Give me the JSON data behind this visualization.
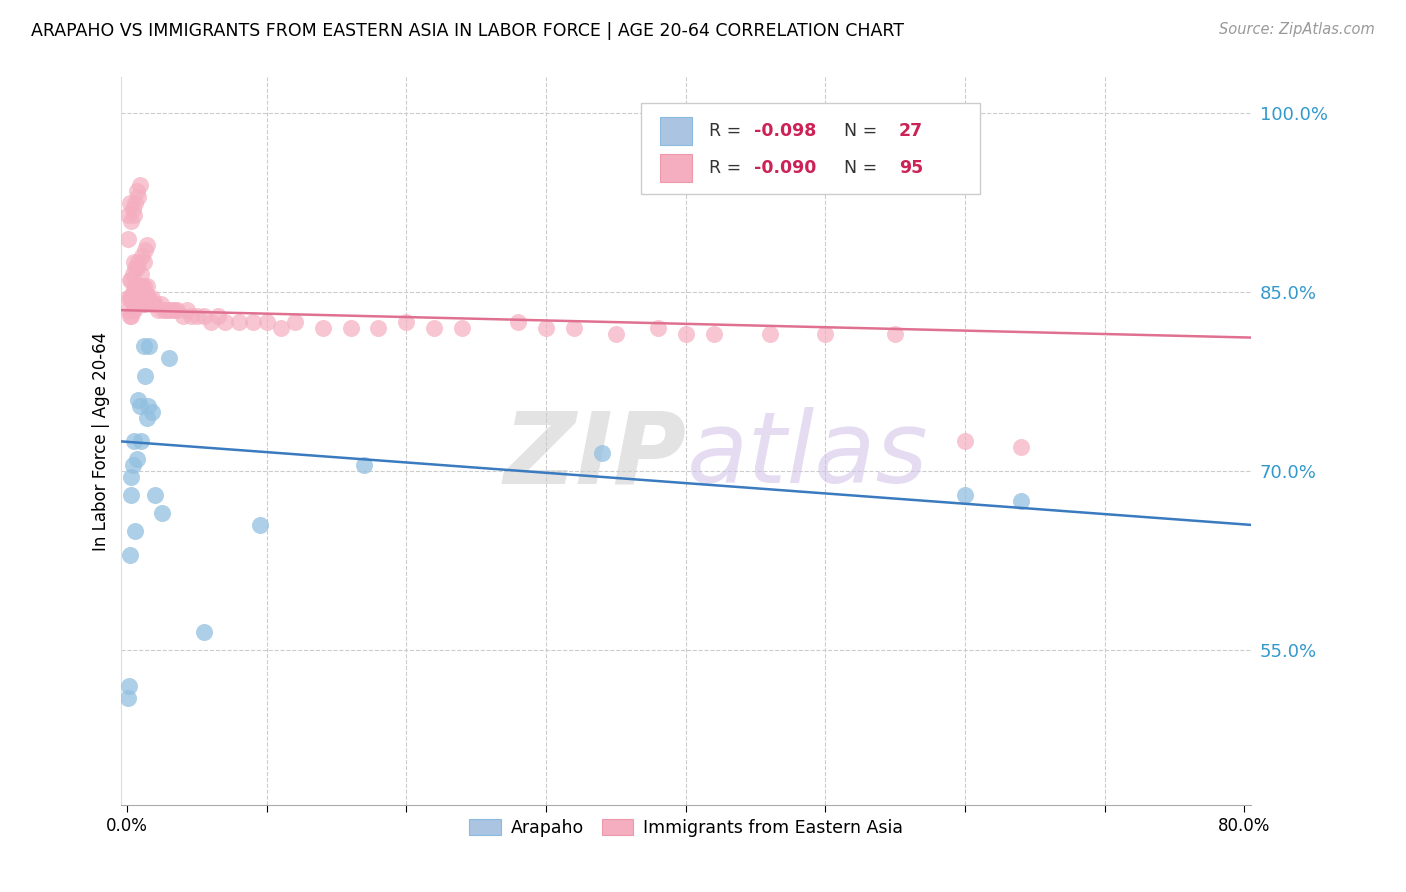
{
  "title": "ARAPAHO VS IMMIGRANTS FROM EASTERN ASIA IN LABOR FORCE | AGE 20-64 CORRELATION CHART",
  "source": "Source: ZipAtlas.com",
  "ylabel": "In Labor Force | Age 20-64",
  "ytick_vals": [
    55.0,
    70.0,
    85.0,
    100.0
  ],
  "xmin": -0.004,
  "xmax": 0.805,
  "ymin": 42.0,
  "ymax": 103.0,
  "watermark": "ZIPatlas",
  "legend_color1": "#aac4e2",
  "legend_color2": "#f4aec0",
  "arapaho_color": "#92bfdf",
  "eastern_asia_color": "#f4aec0",
  "trendline_blue": "#3a7abf",
  "trendline_pink": "#e07090",
  "blue_trend_x0": -0.004,
  "blue_trend_x1": 0.805,
  "blue_trend_y0": 72.5,
  "blue_trend_y1": 65.5,
  "pink_trend_y0": 83.5,
  "pink_trend_y1": 81.2,
  "arapaho_x": [
    0.0008,
    0.0015,
    0.002,
    0.0025,
    0.003,
    0.004,
    0.005,
    0.006,
    0.007,
    0.008,
    0.009,
    0.01,
    0.012,
    0.013,
    0.014,
    0.015,
    0.016,
    0.018,
    0.02,
    0.025,
    0.03,
    0.055,
    0.095,
    0.17,
    0.34,
    0.6,
    0.64
  ],
  "arapaho_y": [
    51.0,
    52.0,
    63.0,
    68.0,
    69.5,
    70.5,
    72.5,
    65.0,
    71.0,
    76.0,
    75.5,
    72.5,
    80.5,
    78.0,
    74.5,
    75.5,
    80.5,
    75.0,
    68.0,
    66.5,
    79.5,
    56.5,
    65.5,
    70.5,
    71.5,
    68.0,
    67.5
  ],
  "ea_x": [
    0.001,
    0.001,
    0.002,
    0.002,
    0.002,
    0.003,
    0.003,
    0.003,
    0.004,
    0.004,
    0.004,
    0.005,
    0.005,
    0.005,
    0.006,
    0.006,
    0.006,
    0.007,
    0.007,
    0.007,
    0.008,
    0.008,
    0.008,
    0.009,
    0.009,
    0.01,
    0.01,
    0.011,
    0.011,
    0.012,
    0.012,
    0.013,
    0.013,
    0.014,
    0.014,
    0.015,
    0.016,
    0.017,
    0.018,
    0.019,
    0.02,
    0.022,
    0.024,
    0.026,
    0.028,
    0.03,
    0.032,
    0.034,
    0.036,
    0.04,
    0.043,
    0.046,
    0.05,
    0.055,
    0.06,
    0.065,
    0.07,
    0.08,
    0.09,
    0.1,
    0.11,
    0.12,
    0.14,
    0.16,
    0.18,
    0.2,
    0.22,
    0.24,
    0.28,
    0.3,
    0.32,
    0.35,
    0.38,
    0.4,
    0.42,
    0.46,
    0.5,
    0.55,
    0.6,
    0.64,
    0.001,
    0.001,
    0.002,
    0.003,
    0.004,
    0.005,
    0.006,
    0.007,
    0.008,
    0.009,
    0.01,
    0.011,
    0.012,
    0.013,
    0.014
  ],
  "ea_y": [
    83.5,
    84.5,
    83.0,
    84.5,
    86.0,
    83.0,
    84.5,
    86.0,
    83.5,
    85.0,
    86.5,
    83.5,
    85.0,
    87.5,
    84.0,
    85.5,
    87.0,
    84.0,
    85.5,
    87.0,
    84.0,
    85.5,
    87.5,
    84.5,
    85.5,
    84.0,
    85.5,
    84.0,
    85.5,
    84.0,
    85.5,
    84.0,
    85.0,
    84.5,
    85.5,
    84.5,
    84.5,
    84.0,
    84.5,
    84.0,
    84.0,
    83.5,
    84.0,
    83.5,
    83.5,
    83.5,
    83.5,
    83.5,
    83.5,
    83.0,
    83.5,
    83.0,
    83.0,
    83.0,
    82.5,
    83.0,
    82.5,
    82.5,
    82.5,
    82.5,
    82.0,
    82.5,
    82.0,
    82.0,
    82.0,
    82.5,
    82.0,
    82.0,
    82.5,
    82.0,
    82.0,
    81.5,
    82.0,
    81.5,
    81.5,
    81.5,
    81.5,
    81.5,
    72.5,
    72.0,
    89.5,
    91.5,
    92.5,
    91.0,
    92.0,
    91.5,
    92.5,
    93.5,
    93.0,
    94.0,
    86.5,
    88.0,
    87.5,
    88.5,
    89.0
  ]
}
